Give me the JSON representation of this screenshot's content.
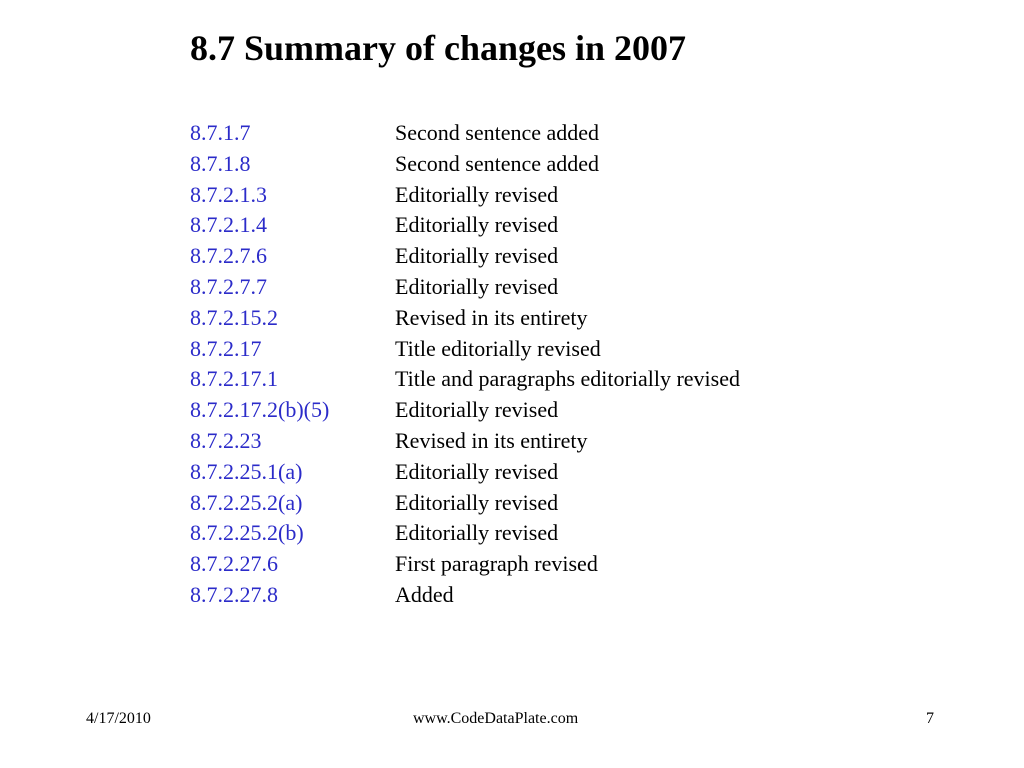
{
  "title": "8.7 Summary of changes in 2007",
  "changes": [
    {
      "section": "8.7.1.7",
      "description": "Second sentence added"
    },
    {
      "section": "8.7.1.8",
      "description": "Second sentence added"
    },
    {
      "section": "8.7.2.1.3",
      "description": "Editorially revised"
    },
    {
      "section": "8.7.2.1.4",
      "description": "Editorially revised"
    },
    {
      "section": "8.7.2.7.6",
      "description": "Editorially revised"
    },
    {
      "section": "8.7.2.7.7",
      "description": "Editorially revised"
    },
    {
      "section": "8.7.2.15.2",
      "description": "Revised in its entirety"
    },
    {
      "section": "8.7.2.17",
      "description": "Title editorially revised"
    },
    {
      "section": "8.7.2.17.1",
      "description": "Title and paragraphs editorially revised"
    },
    {
      "section": "8.7.2.17.2(b)(5)",
      "description": "Editorially revised"
    },
    {
      "section": "8.7.2.23",
      "description": "Revised in its entirety"
    },
    {
      "section": "8.7.2.25.1(a)",
      "description": "Editorially revised"
    },
    {
      "section": "8.7.2.25.2(a)",
      "description": "Editorially revised"
    },
    {
      "section": "8.7.2.25.2(b)",
      "description": "Editorially revised"
    },
    {
      "section": "8.7.2.27.6",
      "description": "First paragraph revised"
    },
    {
      "section": "8.7.2.27.8",
      "description": "Added"
    }
  ],
  "footer": {
    "date": "4/17/2010",
    "url": "www.CodeDataPlate.com",
    "page": "7"
  },
  "colors": {
    "link": "#2b2bc9",
    "text": "#000000",
    "background": "#ffffff"
  }
}
